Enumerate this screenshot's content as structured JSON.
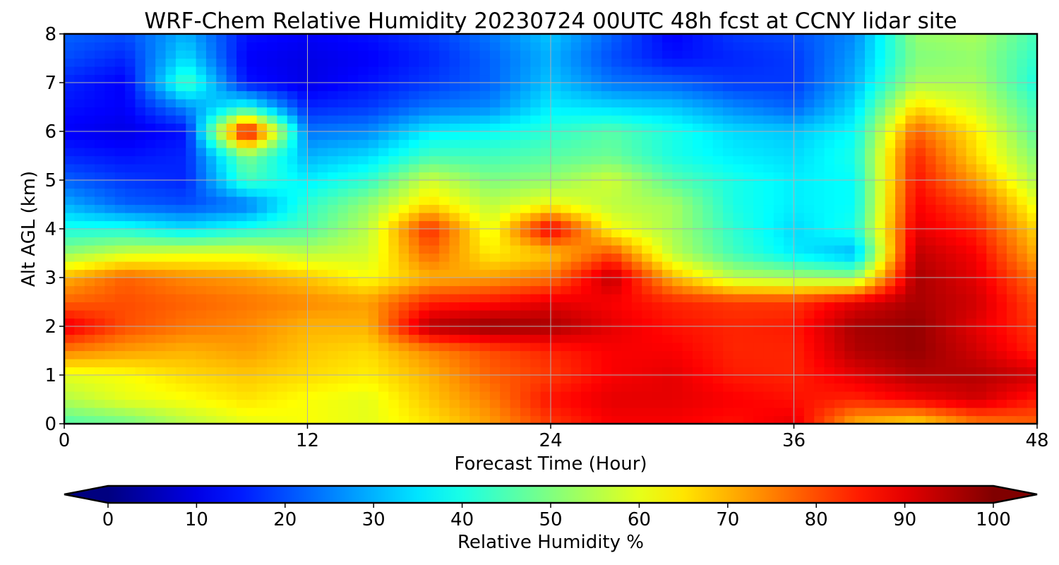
{
  "chart_data": {
    "type": "heatmap",
    "title": "WRF-Chem Relative Humidity 20230724 00UTC 48h fcst at CCNY lidar site",
    "xlabel": "Forecast Time (Hour)",
    "ylabel": "Alt AGL (km)",
    "xlim": [
      0,
      48
    ],
    "ylim": [
      0,
      8
    ],
    "x_ticks": [
      "0",
      "12",
      "24",
      "36",
      "48"
    ],
    "y_ticks": [
      "0",
      "1",
      "2",
      "3",
      "4",
      "5",
      "6",
      "7",
      "8"
    ],
    "grid": true,
    "colormap": "jet",
    "colorbar": {
      "label": "Relative Humidity %",
      "range": [
        0,
        100
      ],
      "ticks": [
        "0",
        "10",
        "20",
        "30",
        "40",
        "50",
        "60",
        "70",
        "80",
        "90",
        "100"
      ],
      "extend": "both",
      "orientation": "horizontal"
    },
    "grid_x": [
      0,
      3,
      6,
      9,
      12,
      15,
      18,
      21,
      24,
      27,
      30,
      33,
      36,
      39,
      42,
      45,
      48
    ],
    "grid_y": [
      0,
      0.5,
      1,
      1.5,
      2,
      2.5,
      3,
      3.5,
      4,
      4.5,
      5,
      5.5,
      6,
      6.5,
      7,
      7.5,
      8
    ],
    "values": [
      [
        45,
        48,
        55,
        60,
        62,
        60,
        65,
        72,
        82,
        88,
        88,
        86,
        90,
        70,
        65,
        75,
        78
      ],
      [
        55,
        60,
        62,
        65,
        62,
        60,
        68,
        75,
        86,
        90,
        90,
        88,
        86,
        84,
        88,
        92,
        85
      ],
      [
        60,
        62,
        66,
        68,
        66,
        64,
        70,
        78,
        82,
        88,
        90,
        85,
        84,
        90,
        95,
        95,
        92
      ],
      [
        75,
        72,
        70,
        72,
        68,
        66,
        74,
        80,
        84,
        88,
        88,
        84,
        84,
        95,
        98,
        92,
        84
      ],
      [
        90,
        80,
        76,
        74,
        70,
        70,
        95,
        98,
        96,
        90,
        86,
        84,
        85,
        96,
        98,
        90,
        82
      ],
      [
        78,
        80,
        78,
        76,
        74,
        72,
        84,
        86,
        90,
        88,
        84,
        82,
        82,
        90,
        96,
        92,
        80
      ],
      [
        70,
        78,
        74,
        72,
        68,
        62,
        70,
        72,
        76,
        94,
        70,
        56,
        54,
        52,
        96,
        90,
        76
      ],
      [
        52,
        58,
        60,
        60,
        56,
        58,
        78,
        64,
        68,
        80,
        56,
        44,
        36,
        30,
        94,
        88,
        70
      ],
      [
        40,
        40,
        35,
        40,
        45,
        56,
        84,
        60,
        90,
        62,
        54,
        42,
        34,
        40,
        90,
        84,
        66
      ],
      [
        30,
        22,
        20,
        24,
        42,
        52,
        66,
        56,
        62,
        56,
        54,
        40,
        36,
        38,
        88,
        80,
        60
      ],
      [
        22,
        18,
        16,
        44,
        36,
        42,
        58,
        50,
        52,
        58,
        46,
        40,
        36,
        38,
        86,
        72,
        54
      ],
      [
        16,
        14,
        16,
        50,
        30,
        34,
        44,
        44,
        46,
        48,
        40,
        36,
        34,
        40,
        84,
        66,
        50
      ],
      [
        12,
        10,
        14,
        92,
        24,
        26,
        36,
        38,
        42,
        46,
        40,
        34,
        32,
        38,
        78,
        64,
        46
      ],
      [
        14,
        12,
        26,
        40,
        16,
        18,
        24,
        26,
        36,
        34,
        32,
        26,
        22,
        34,
        66,
        58,
        44
      ],
      [
        16,
        12,
        45,
        14,
        10,
        14,
        18,
        22,
        32,
        24,
        22,
        18,
        18,
        30,
        54,
        54,
        40
      ],
      [
        20,
        16,
        35,
        12,
        10,
        12,
        16,
        22,
        30,
        20,
        14,
        16,
        18,
        28,
        50,
        52,
        42
      ],
      [
        22,
        20,
        30,
        14,
        12,
        14,
        18,
        24,
        32,
        22,
        12,
        18,
        20,
        26,
        52,
        54,
        44
      ]
    ]
  }
}
